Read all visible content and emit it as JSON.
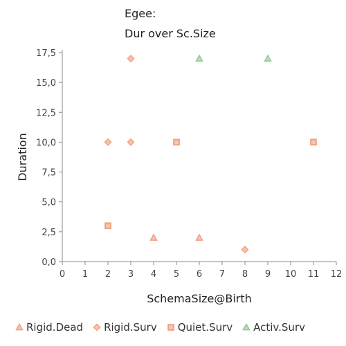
{
  "title_lines": [
    "Egee:",
    "Dur over Sc.Size"
  ],
  "chart_data": {
    "type": "scatter",
    "title": "Egee: Dur over Sc.Size",
    "xlabel": "SchemaSize@Birth",
    "ylabel": "Duration",
    "xlim": [
      0,
      12
    ],
    "ylim": [
      0,
      17.5
    ],
    "x_ticks": [
      0,
      1,
      2,
      3,
      4,
      5,
      6,
      7,
      8,
      9,
      10,
      11,
      12
    ],
    "x_tick_labels": [
      "0",
      "1",
      "2",
      "3",
      "4",
      "5",
      "6",
      "7",
      "8",
      "9",
      "10",
      "11",
      "12"
    ],
    "y_ticks": [
      0,
      2.5,
      5,
      7.5,
      10,
      12.5,
      15,
      17.5
    ],
    "y_tick_labels": [
      "0,0",
      "2,5",
      "5,0",
      "7,5",
      "10,0",
      "12,5",
      "15,0",
      "17,5"
    ],
    "grid": false,
    "legend_position": "bottom",
    "series": [
      {
        "name": "Rigid.Dead",
        "marker": "triangle",
        "color": "#f0a080",
        "points": [
          [
            4,
            2
          ],
          [
            6,
            2
          ]
        ]
      },
      {
        "name": "Rigid.Surv",
        "marker": "diamond",
        "color": "#f0a080",
        "points": [
          [
            2,
            10
          ],
          [
            3,
            10
          ],
          [
            3,
            17
          ],
          [
            8,
            1
          ]
        ]
      },
      {
        "name": "Quiet.Surv",
        "marker": "square",
        "color": "#f0a080",
        "points": [
          [
            2,
            3
          ],
          [
            5,
            10
          ],
          [
            11,
            10
          ]
        ]
      },
      {
        "name": "Activ.Surv",
        "marker": "triangle",
        "color": "#90c890",
        "points": [
          [
            6,
            17
          ],
          [
            9,
            17
          ]
        ]
      }
    ]
  }
}
